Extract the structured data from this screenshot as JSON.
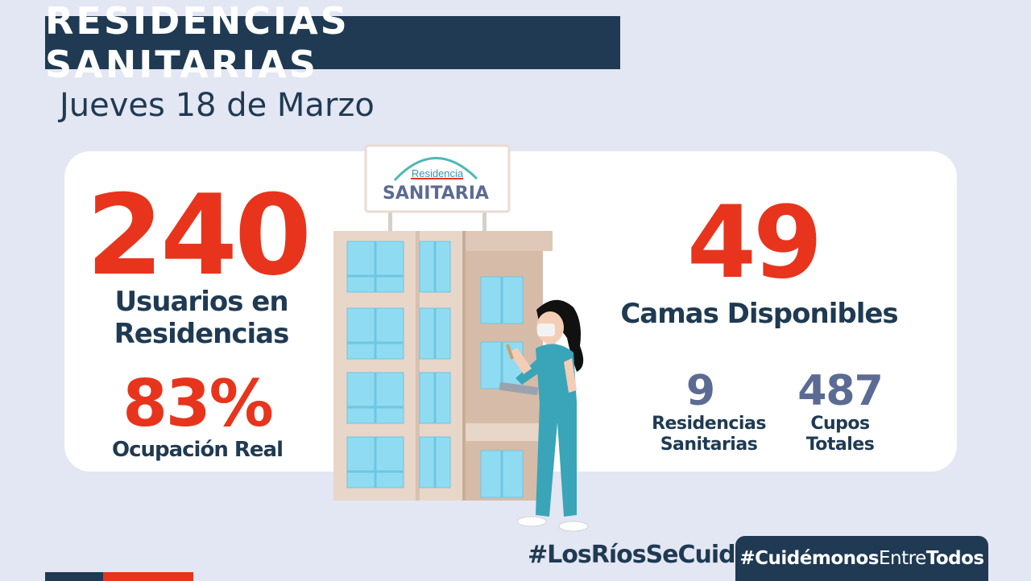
{
  "title": "RESIDENCIAS SANITARIAS",
  "date": "Jueves 18 de Marzo",
  "sign": {
    "small": "Residencia",
    "large": "SANITARIA"
  },
  "stats": {
    "usuarios": {
      "value": "240",
      "label_line1": "Usuarios en",
      "label_line2": "Residencias"
    },
    "ocupacion": {
      "value": "83%",
      "label": "Ocupación Real"
    },
    "camas": {
      "value": "49",
      "label": "Camas Disponibles"
    },
    "residencias": {
      "value": "9",
      "label_line1": "Residencias",
      "label_line2": "Sanitarias"
    },
    "cupos": {
      "value": "487",
      "label_line1": "Cupos",
      "label_line2": "Totales"
    }
  },
  "hashtags": {
    "rios": "#LosRíosSeCuida",
    "cuidemonos_a": "#Cuidémonos",
    "cuidemonos_b": "Entre",
    "cuidemonos_c": "Todos"
  },
  "colors": {
    "navy": "#1f3a52",
    "red": "#e8341c",
    "slate": "#5c6b93",
    "background": "#e3e6f3"
  },
  "illustration": "nurse-in-front-of-residence-building"
}
